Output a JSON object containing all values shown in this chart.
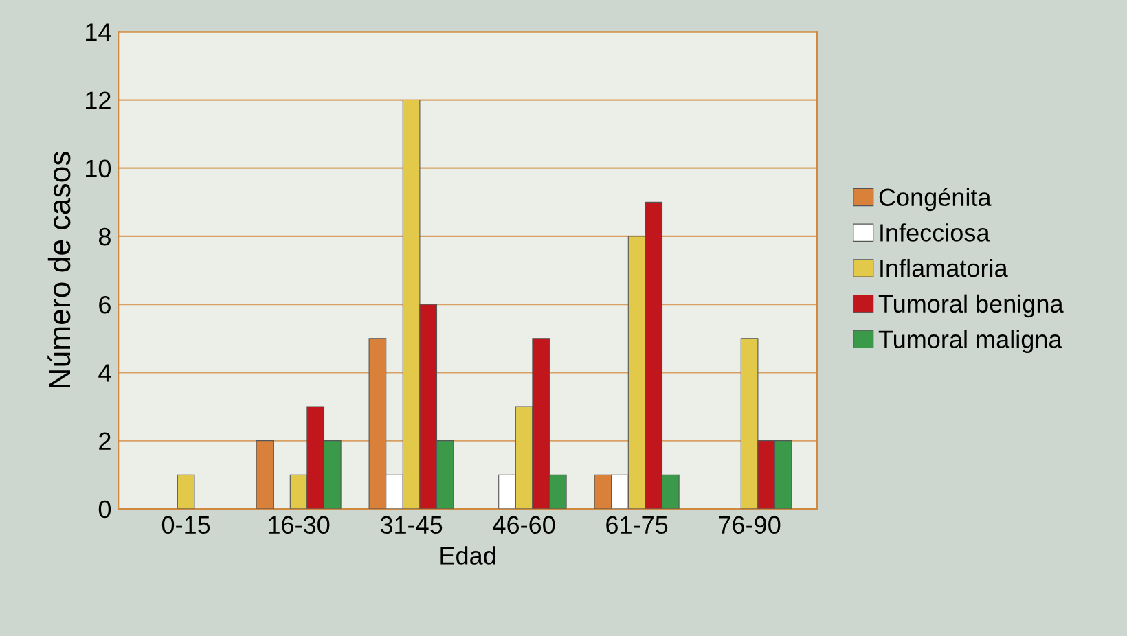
{
  "chart_data": {
    "type": "bar",
    "xlabel": "Edad",
    "ylabel": "Número de casos",
    "categories": [
      "0-15",
      "16-30",
      "31-45",
      "46-60",
      "61-75",
      "76-90"
    ],
    "series": [
      {
        "name": "Congénita",
        "color": "#d9813a",
        "values": [
          null,
          2,
          5,
          null,
          1,
          null
        ]
      },
      {
        "name": "Infecciosa",
        "color": "#ffffff",
        "values": [
          null,
          null,
          1,
          1,
          1,
          null
        ]
      },
      {
        "name": "Inflamatoria",
        "color": "#e2c94a",
        "values": [
          1,
          1,
          12,
          3,
          8,
          5
        ]
      },
      {
        "name": "Tumoral benigna",
        "color": "#c0161c",
        "values": [
          null,
          3,
          6,
          5,
          9,
          2
        ]
      },
      {
        "name": "Tumoral maligna",
        "color": "#3a9a4a",
        "values": [
          null,
          2,
          2,
          1,
          1,
          2
        ]
      }
    ],
    "ylim": [
      0,
      14
    ],
    "yticks": [
      0,
      2,
      4,
      6,
      8,
      10,
      12,
      14
    ],
    "grid": "y",
    "legend": "right"
  }
}
